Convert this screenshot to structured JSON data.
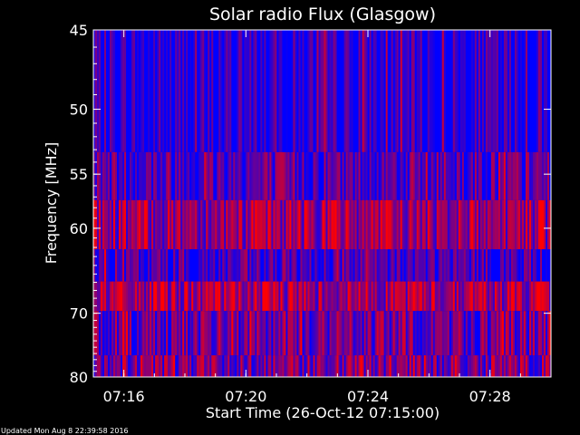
{
  "chart_data": {
    "type": "heatmap",
    "title": "Solar radio Flux (Glasgow)",
    "xlabel": "Start Time (26-Oct-12 07:15:00)",
    "ylabel": "Frequency [MHz]",
    "x_unit": "time of day (26-Oct-12)",
    "xlim": [
      "07:15:00",
      "07:30:00"
    ],
    "ylim": [
      45,
      80
    ],
    "y_inverted": true,
    "grid": false,
    "x_tick_labels": [
      "07:16",
      "07:20",
      "07:24",
      "07:28"
    ],
    "y_tick_labels": [
      "45",
      "50",
      "55",
      "60",
      "70",
      "80"
    ],
    "color_scale": {
      "low": "#0000ff",
      "high": "#ff0000"
    },
    "frequency_bands": [
      {
        "from_mhz": 45.0,
        "to_mhz": 53.2,
        "mean_intensity": 0.08
      },
      {
        "from_mhz": 53.2,
        "to_mhz": 57.3,
        "mean_intensity": 0.32
      },
      {
        "from_mhz": 57.3,
        "to_mhz": 62.2,
        "mean_intensity": 0.58
      },
      {
        "from_mhz": 62.2,
        "to_mhz": 65.9,
        "mean_intensity": 0.22
      },
      {
        "from_mhz": 65.9,
        "to_mhz": 69.7,
        "mean_intensity": 0.62
      },
      {
        "from_mhz": 69.7,
        "to_mhz": 76.3,
        "mean_intensity": 0.4
      },
      {
        "from_mhz": 76.3,
        "to_mhz": 80.0,
        "mean_intensity": 0.45
      }
    ]
  },
  "footer": {
    "updated": "Updated Mon Aug  8 22:39:58 2016"
  }
}
